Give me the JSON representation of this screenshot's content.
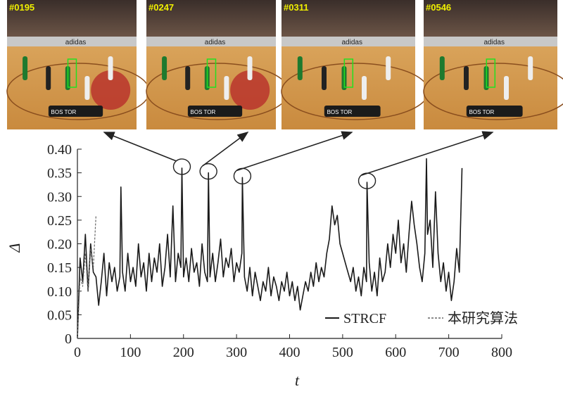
{
  "frames": [
    {
      "id": "#0195",
      "score_left": "BOS",
      "score_right": "TOR",
      "brand": "adidas"
    },
    {
      "id": "#0247",
      "score_left": "BOS",
      "score_right": "TOR",
      "brand": "adidas"
    },
    {
      "id": "#0311",
      "score_left": "BOS",
      "score_right": "TOR",
      "brand": "adidas"
    },
    {
      "id": "#0546",
      "score_left": "BOS",
      "score_right": "TOR",
      "brand": "adidas"
    }
  ],
  "chart_data": {
    "type": "line",
    "xlabel": "t",
    "ylabel": "Δ",
    "xlim": [
      0,
      800
    ],
    "ylim": [
      0,
      0.4
    ],
    "xticks": [
      "0",
      "100",
      "200",
      "300",
      "400",
      "500",
      "600",
      "700",
      "800"
    ],
    "yticks": [
      "0",
      "0.05",
      "0.10",
      "0.15",
      "0.20",
      "0.25",
      "0.30",
      "0.35",
      "0.40"
    ],
    "legend_position": "lower-right",
    "series": [
      {
        "name": "STRCF",
        "style": "solid",
        "color": "#1a1a1a",
        "x": [
          0,
          5,
          10,
          15,
          20,
          25,
          30,
          35,
          40,
          45,
          50,
          55,
          60,
          65,
          70,
          75,
          80,
          82,
          85,
          90,
          95,
          100,
          105,
          110,
          115,
          120,
          125,
          130,
          135,
          140,
          145,
          150,
          155,
          160,
          165,
          170,
          175,
          180,
          185,
          190,
          195,
          197,
          200,
          205,
          210,
          215,
          220,
          225,
          230,
          235,
          240,
          245,
          247,
          250,
          255,
          260,
          265,
          270,
          275,
          280,
          285,
          290,
          295,
          300,
          305,
          310,
          311,
          315,
          320,
          325,
          330,
          335,
          340,
          345,
          350,
          355,
          360,
          365,
          370,
          375,
          380,
          385,
          390,
          395,
          400,
          405,
          410,
          415,
          420,
          425,
          430,
          435,
          440,
          445,
          450,
          455,
          460,
          465,
          470,
          475,
          480,
          485,
          490,
          495,
          500,
          505,
          510,
          515,
          520,
          525,
          530,
          535,
          540,
          545,
          546,
          550,
          555,
          560,
          565,
          570,
          575,
          580,
          585,
          590,
          595,
          600,
          605,
          610,
          615,
          620,
          625,
          630,
          635,
          640,
          645,
          650,
          655,
          658,
          660,
          665,
          670,
          675,
          680,
          685,
          690,
          695,
          700,
          705,
          710,
          715,
          720,
          725
        ],
        "y": [
          0.0,
          0.17,
          0.12,
          0.22,
          0.1,
          0.2,
          0.14,
          0.13,
          0.07,
          0.12,
          0.18,
          0.09,
          0.16,
          0.12,
          0.15,
          0.1,
          0.13,
          0.32,
          0.14,
          0.1,
          0.18,
          0.12,
          0.15,
          0.11,
          0.2,
          0.13,
          0.16,
          0.1,
          0.18,
          0.12,
          0.17,
          0.14,
          0.2,
          0.11,
          0.15,
          0.22,
          0.13,
          0.28,
          0.12,
          0.18,
          0.15,
          0.36,
          0.13,
          0.17,
          0.12,
          0.19,
          0.14,
          0.16,
          0.11,
          0.2,
          0.14,
          0.12,
          0.35,
          0.13,
          0.18,
          0.12,
          0.16,
          0.21,
          0.13,
          0.17,
          0.15,
          0.19,
          0.12,
          0.16,
          0.14,
          0.18,
          0.34,
          0.13,
          0.1,
          0.15,
          0.09,
          0.14,
          0.11,
          0.08,
          0.12,
          0.1,
          0.15,
          0.09,
          0.13,
          0.11,
          0.08,
          0.12,
          0.1,
          0.14,
          0.09,
          0.12,
          0.08,
          0.11,
          0.06,
          0.09,
          0.12,
          0.1,
          0.14,
          0.11,
          0.16,
          0.12,
          0.15,
          0.13,
          0.18,
          0.21,
          0.28,
          0.24,
          0.26,
          0.2,
          0.18,
          0.16,
          0.14,
          0.12,
          0.15,
          0.1,
          0.13,
          0.09,
          0.15,
          0.12,
          0.33,
          0.16,
          0.1,
          0.14,
          0.09,
          0.17,
          0.12,
          0.14,
          0.2,
          0.15,
          0.22,
          0.18,
          0.25,
          0.16,
          0.2,
          0.14,
          0.22,
          0.29,
          0.24,
          0.2,
          0.15,
          0.12,
          0.18,
          0.38,
          0.22,
          0.25,
          0.15,
          0.31,
          0.18,
          0.12,
          0.16,
          0.1,
          0.14,
          0.08,
          0.12,
          0.19,
          0.14,
          0.36
        ]
      },
      {
        "name": "本研究算法",
        "style": "dashed",
        "color": "#666666",
        "x": [
          0,
          5,
          10,
          15,
          20,
          25,
          30,
          35
        ],
        "y": [
          0.0,
          0.13,
          0.11,
          0.18,
          0.1,
          0.19,
          0.15,
          0.26
        ]
      }
    ]
  }
}
